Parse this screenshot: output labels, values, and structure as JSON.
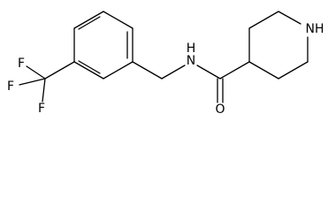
{
  "atoms": [
    {
      "label": "F"
    },
    {
      "label": "F"
    },
    {
      "label": "F"
    },
    {
      "label": "H"
    },
    {
      "label": "N"
    },
    {
      "label": "O"
    },
    {
      "label": "NH"
    }
  ]
}
